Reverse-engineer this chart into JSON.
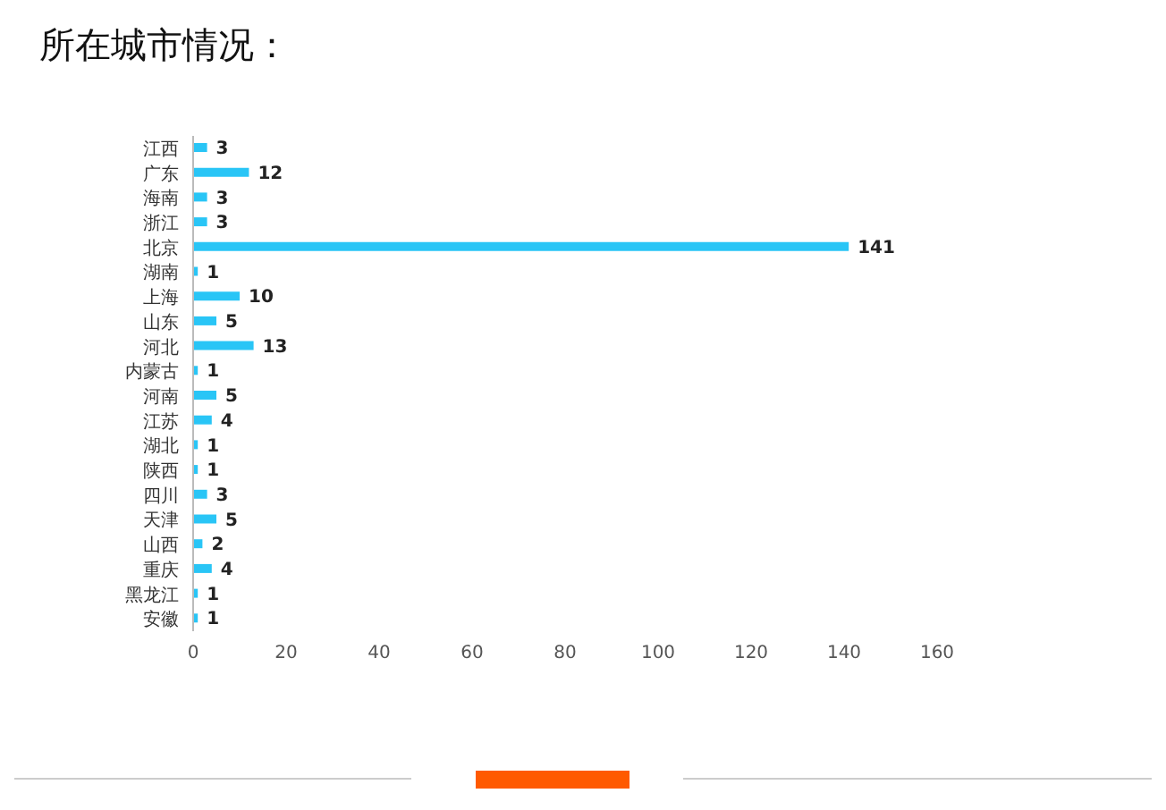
{
  "chart_data": {
    "type": "bar",
    "title": "所在城市情况：",
    "orientation": "horizontal",
    "categories": [
      "江西",
      "广东",
      "海南",
      "浙江",
      "北京",
      "湖南",
      "上海",
      "山东",
      "河北",
      "内蒙古",
      "河南",
      "江苏",
      "湖北",
      "陕西",
      "四川",
      "天津",
      "山西",
      "重庆",
      "黑龙江",
      "安徽"
    ],
    "values": [
      3,
      12,
      3,
      3,
      141,
      1,
      10,
      5,
      13,
      1,
      5,
      4,
      1,
      1,
      3,
      5,
      2,
      4,
      1,
      1
    ],
    "color": "#29c5f6",
    "xlim": [
      0,
      160
    ],
    "xticks": [
      0,
      20,
      40,
      60,
      80,
      100,
      120,
      140,
      160
    ],
    "grid": false,
    "data_labels": true
  }
}
